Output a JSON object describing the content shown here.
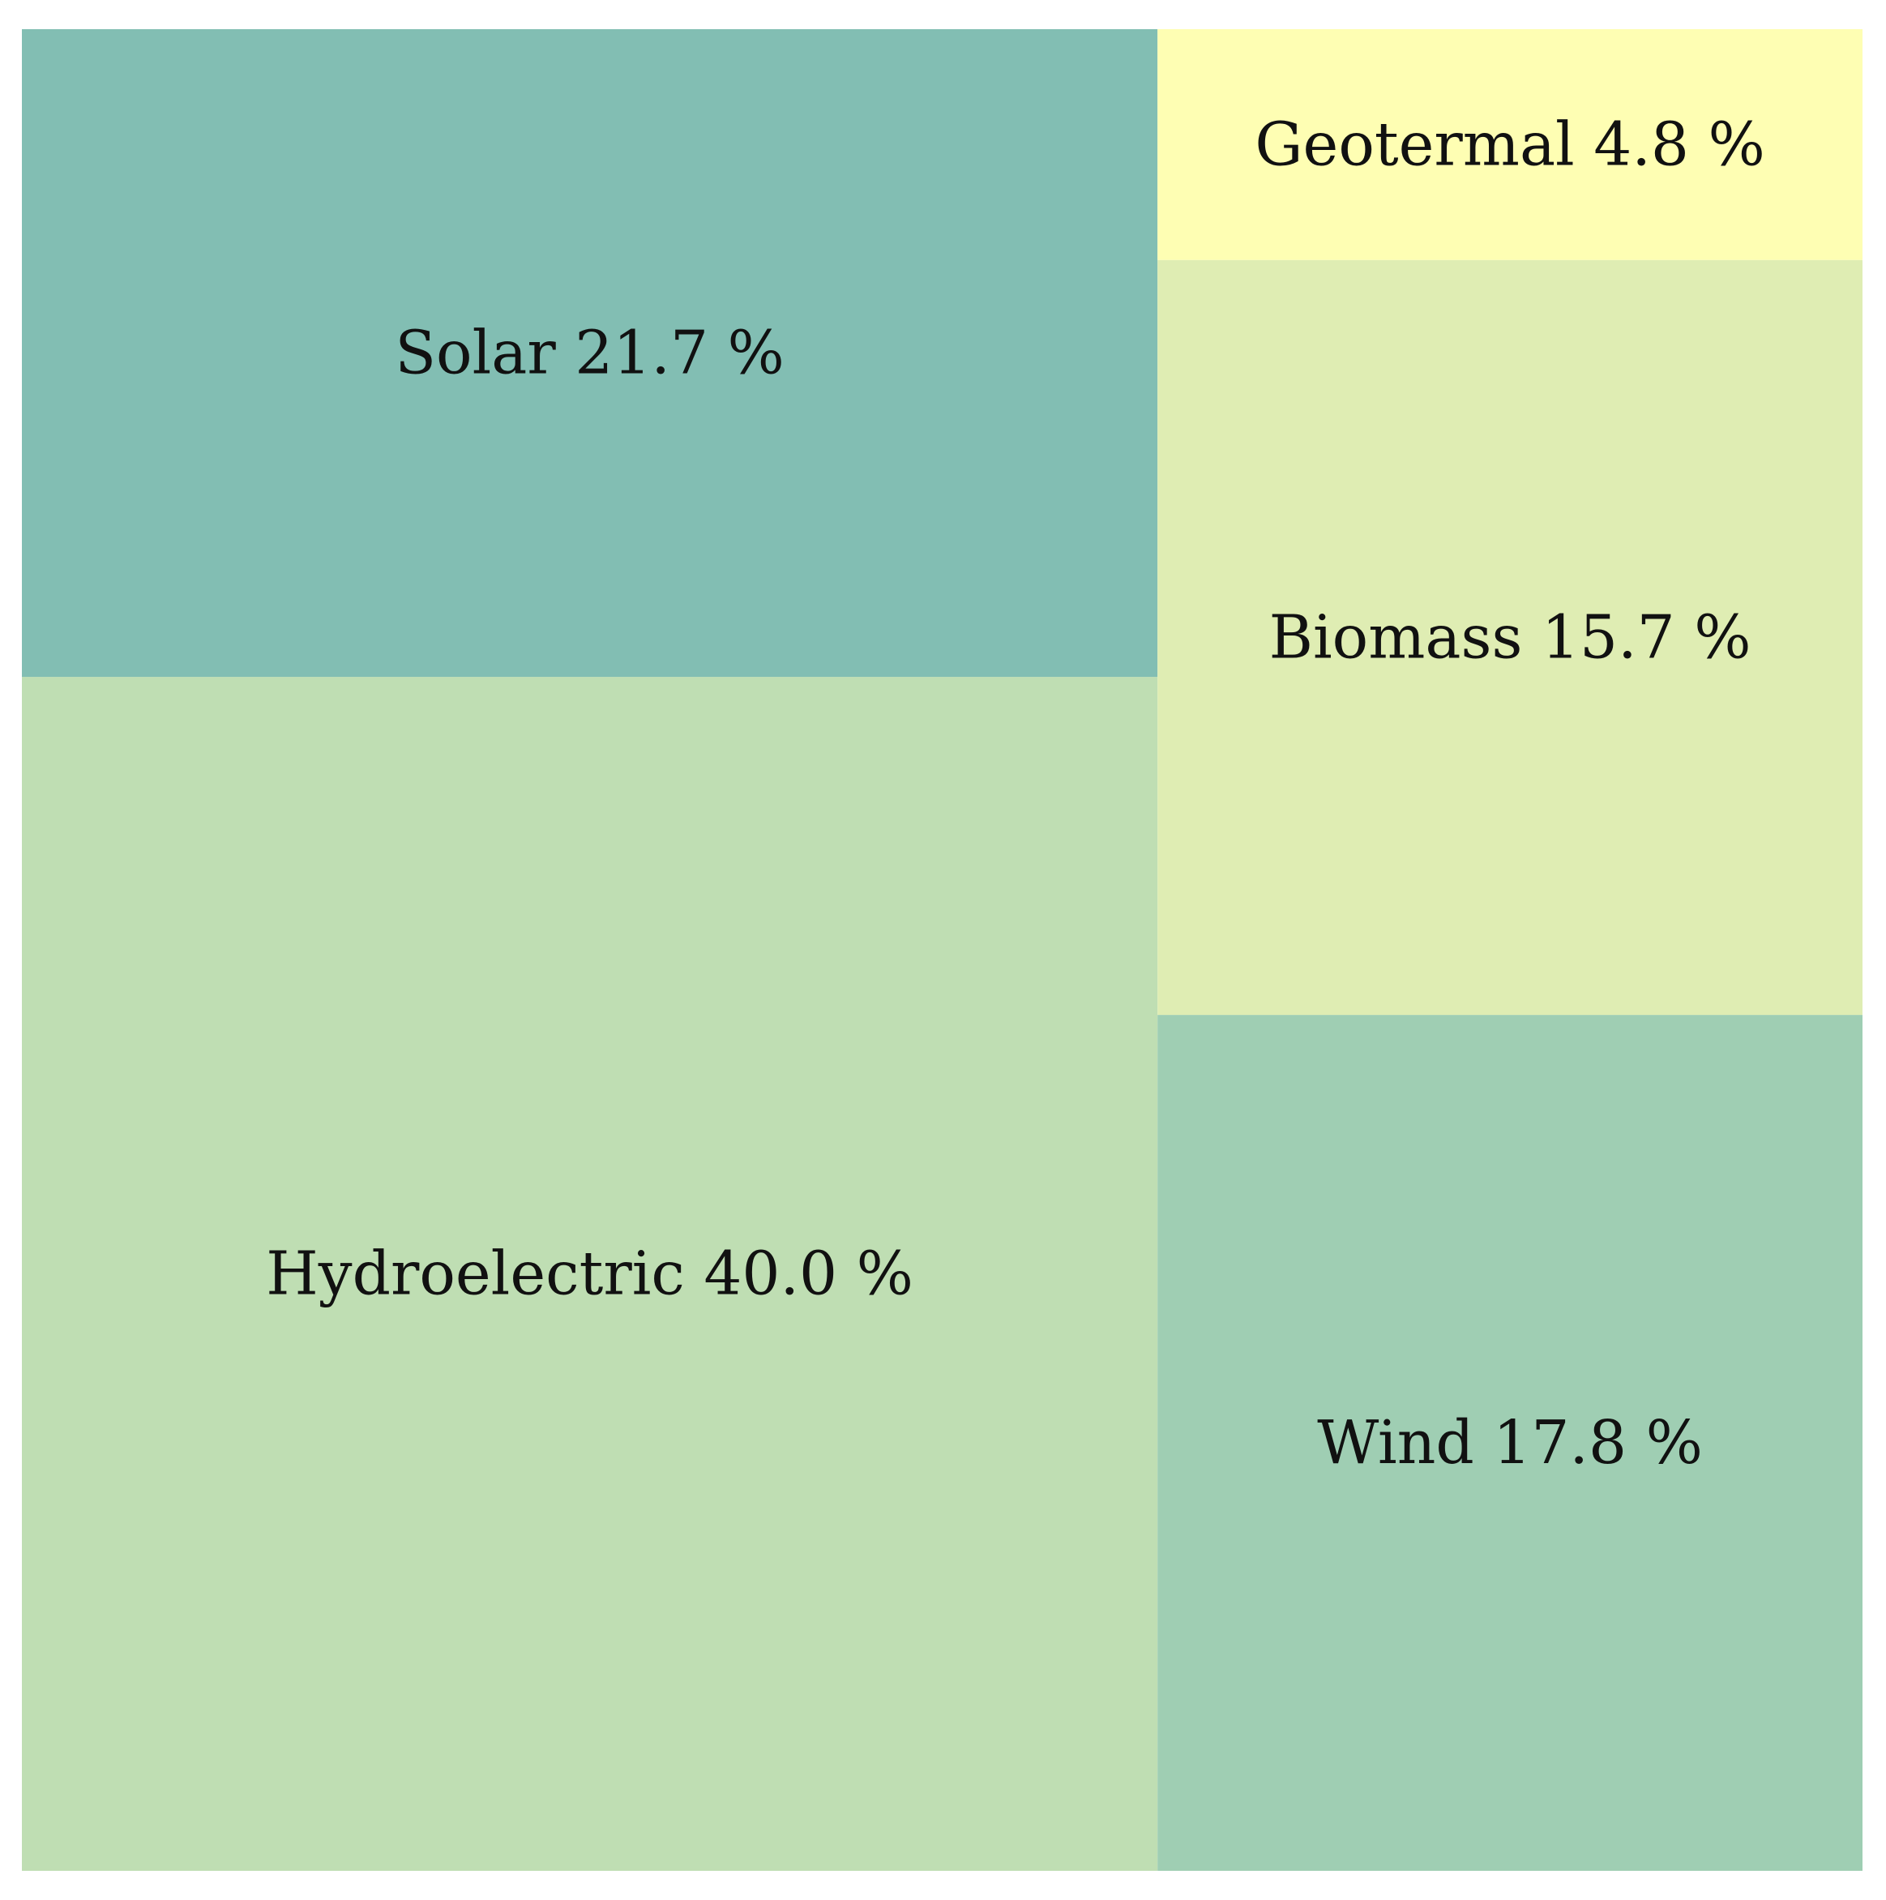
{
  "chart_data": {
    "type": "treemap",
    "categories": [
      "Hydroelectric",
      "Solar",
      "Wind",
      "Biomass",
      "Geotermal"
    ],
    "values": [
      40.0,
      21.7,
      17.8,
      15.7,
      4.8
    ],
    "value_suffix": " %",
    "colors": [
      "#bfdeb3",
      "#82beb3",
      "#9fceb3",
      "#dfedb3",
      "#fefeb3"
    ]
  }
}
